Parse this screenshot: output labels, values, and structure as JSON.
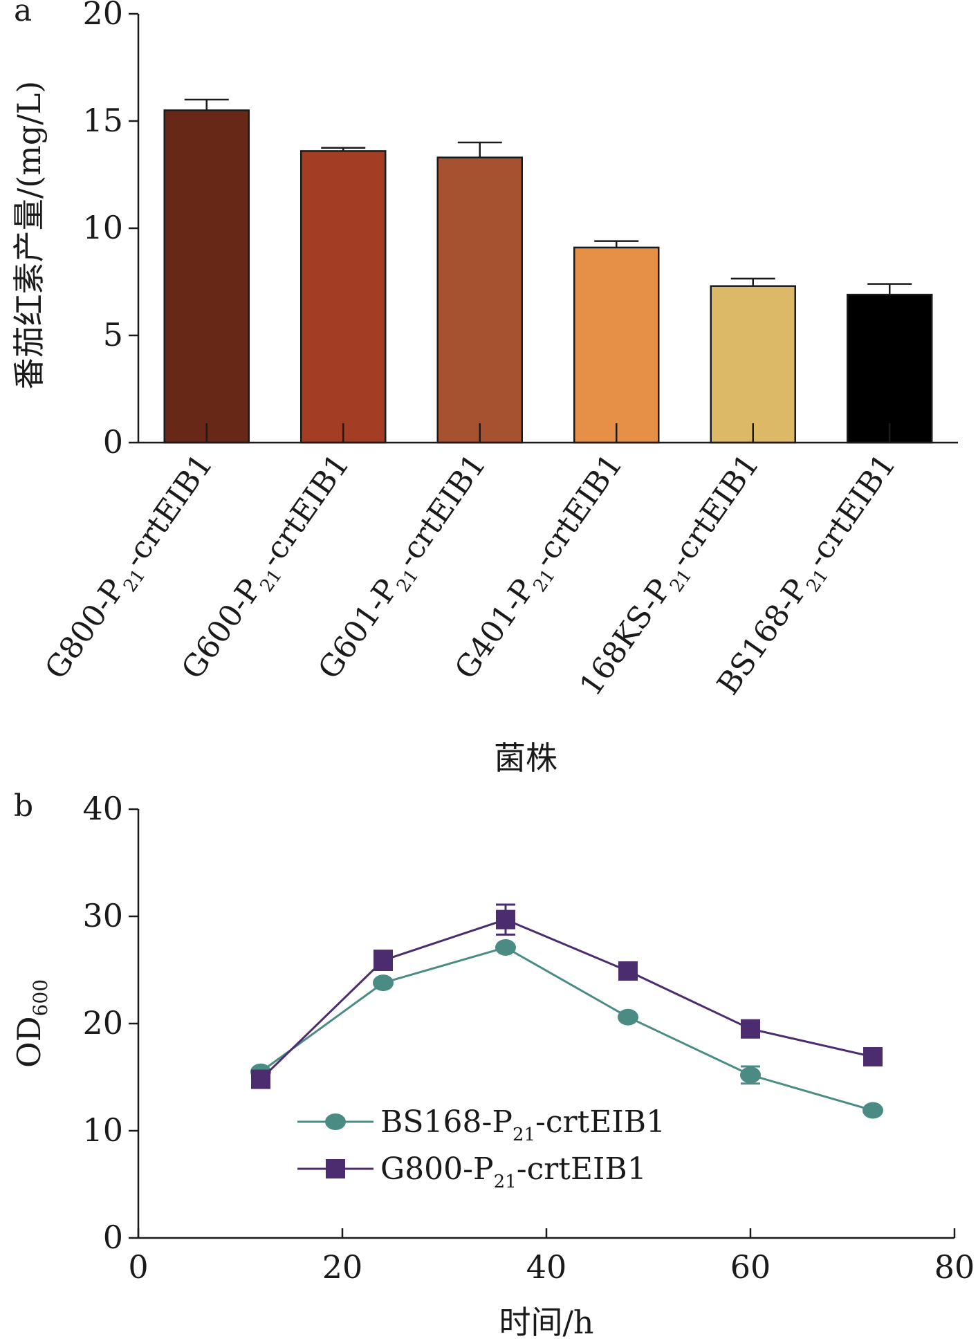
{
  "chart_data": [
    {
      "panel": "a",
      "type": "bar",
      "ylabel": "番茄红素产量/(mg/L)",
      "xlabel": "菌株",
      "ylim": [
        0,
        20
      ],
      "yticks": [
        "0",
        "5",
        "10",
        "15",
        "20"
      ],
      "categories": [
        {
          "main": "G800-P",
          "sub": "21",
          "tail": "-crtEIB1"
        },
        {
          "main": "G600-P",
          "sub": "21",
          "tail": "-crtEIB1"
        },
        {
          "main": "G601-P",
          "sub": "21",
          "tail": "-crtEIB1"
        },
        {
          "main": "G401-P",
          "sub": "21",
          "tail": "-crtEIB1"
        },
        {
          "main": "168KS-P",
          "sub": "21",
          "tail": "-crtEIB1"
        },
        {
          "main": "BS168-P",
          "sub": "21",
          "tail": "-crtEIB1"
        }
      ],
      "values": [
        15.5,
        13.6,
        13.3,
        9.1,
        7.3,
        6.9
      ],
      "errors": [
        0.5,
        0.15,
        0.7,
        0.3,
        0.35,
        0.5
      ],
      "colors": [
        "#682817",
        "#a33e25",
        "#a6512f",
        "#e68f46",
        "#dcb967",
        "#000000"
      ],
      "grid": false
    },
    {
      "panel": "b",
      "type": "line",
      "ylabel_main": "OD",
      "ylabel_sub": "600",
      "xlabel": "时间/h",
      "xlim": [
        0,
        80
      ],
      "ylim": [
        0,
        40
      ],
      "xticks": [
        "0",
        "20",
        "40",
        "60",
        "80"
      ],
      "yticks": [
        "0",
        "10",
        "20",
        "30",
        "40"
      ],
      "x": [
        12,
        24,
        36,
        48,
        60,
        72
      ],
      "series": [
        {
          "name_main": "BS168-P",
          "name_sub": "21",
          "name_tail": "-crtEIB1",
          "values": [
            15.5,
            23.8,
            27.1,
            20.6,
            15.2,
            11.9
          ],
          "errors": [
            0.3,
            0.4,
            0.3,
            0.3,
            0.8,
            0.3
          ],
          "color": "#4a8b83",
          "marker": "circle"
        },
        {
          "name_main": "G800-P",
          "name_sub": "21",
          "name_tail": "-crtEIB1",
          "values": [
            14.8,
            25.9,
            29.7,
            24.9,
            19.5,
            16.9
          ],
          "errors": [
            0.3,
            0.9,
            1.4,
            0.3,
            0.3,
            0.3
          ],
          "color": "#4b2c6e",
          "marker": "square"
        }
      ],
      "legend_position": "bottom-left",
      "grid": false
    }
  ]
}
